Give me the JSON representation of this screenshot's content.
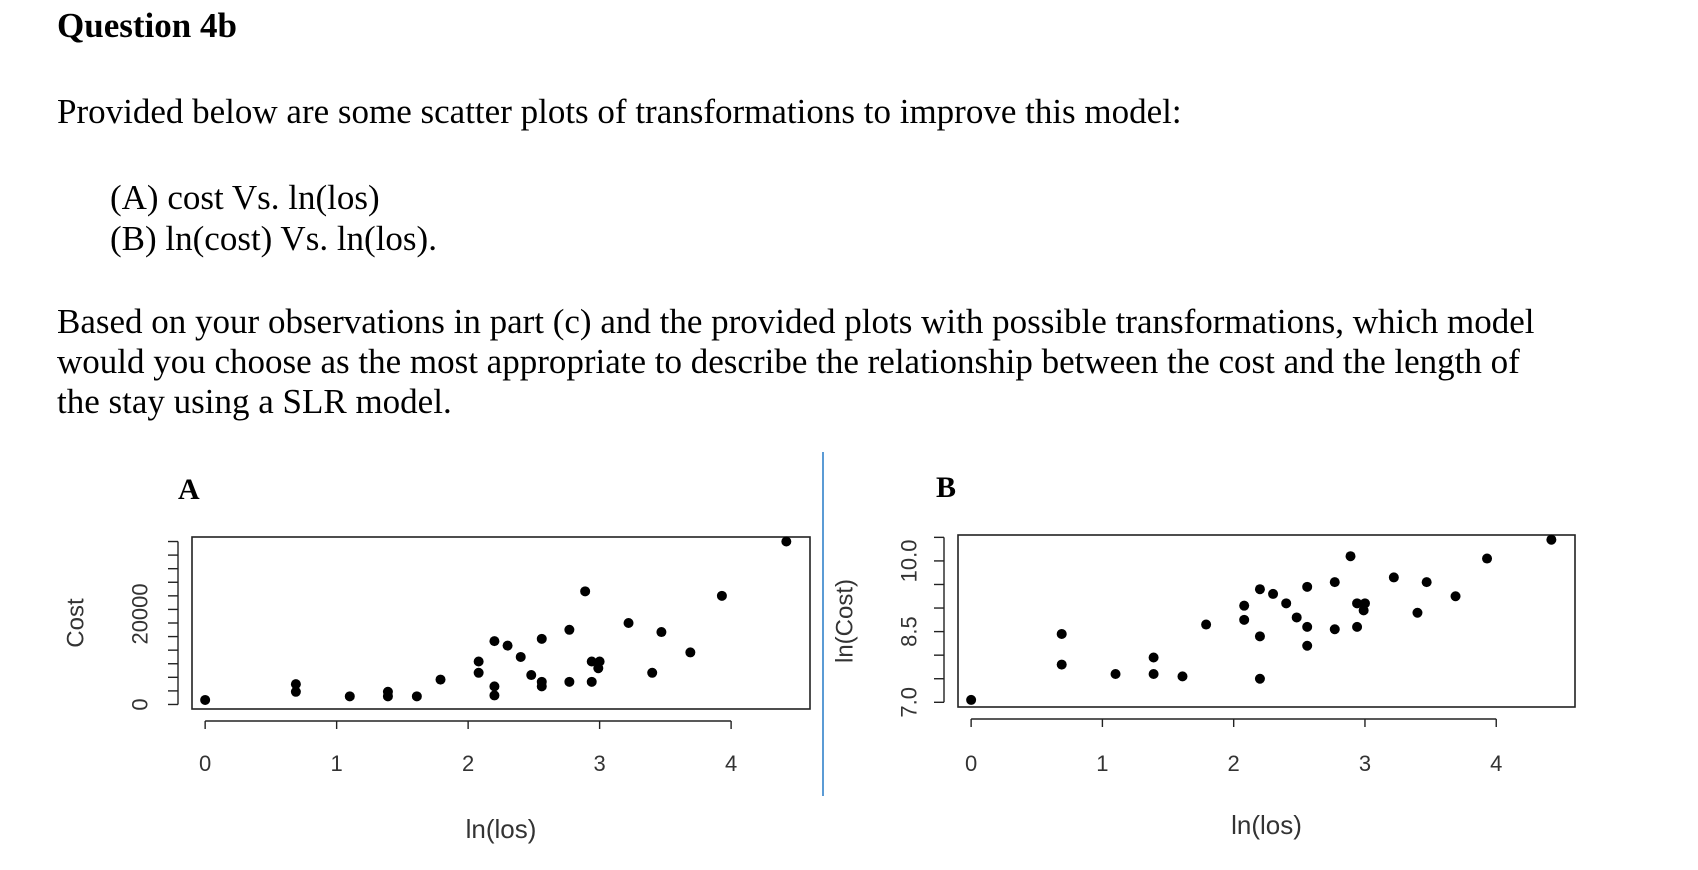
{
  "question": {
    "title": "Question 4b",
    "intro": "Provided below are some scatter plots of transformations to improve this model:",
    "options": [
      "(A) cost Vs. ln(los)",
      "(B) ln(cost) Vs. ln(los)."
    ],
    "paragraph_lines": [
      "Based on your observations in part (c) and the provided plots with possible transformations, which model",
      "would you choose as the most appropriate to describe the relationship between the cost and the length of",
      "the stay using a SLR model."
    ]
  },
  "divider_color": "#5b9bd5",
  "chart_data": [
    {
      "type": "scatter",
      "panel_label": "A",
      "xlabel": "ln(los)",
      "ylabel": "Cost",
      "x_ticks": [
        0,
        1,
        2,
        3,
        4
      ],
      "y_tick_labels": [
        "0",
        "20000"
      ],
      "y_minor_ticks": [
        0,
        3000,
        6000,
        9000,
        12000,
        15000,
        18000,
        21000,
        24000,
        27000,
        30000,
        33000,
        36000
      ],
      "xlim": [
        -0.1,
        4.6
      ],
      "ylim": [
        -1000,
        37000
      ],
      "points": [
        [
          0,
          1000
        ],
        [
          0.69,
          2800
        ],
        [
          0.69,
          4500
        ],
        [
          1.1,
          1800
        ],
        [
          1.39,
          1800
        ],
        [
          1.39,
          2800
        ],
        [
          1.61,
          1800
        ],
        [
          1.79,
          5500
        ],
        [
          2.08,
          7000
        ],
        [
          2.08,
          9500
        ],
        [
          2.2,
          2000
        ],
        [
          2.2,
          4000
        ],
        [
          2.2,
          14000
        ],
        [
          2.3,
          13000
        ],
        [
          2.4,
          10500
        ],
        [
          2.48,
          6500
        ],
        [
          2.56,
          4000
        ],
        [
          2.56,
          5000
        ],
        [
          2.56,
          14500
        ],
        [
          2.77,
          5000
        ],
        [
          2.77,
          16500
        ],
        [
          2.89,
          25000
        ],
        [
          2.94,
          5000
        ],
        [
          2.94,
          9500
        ],
        [
          2.99,
          8000
        ],
        [
          3.0,
          9500
        ],
        [
          3.22,
          18000
        ],
        [
          3.4,
          7000
        ],
        [
          3.47,
          16000
        ],
        [
          3.69,
          11500
        ],
        [
          3.93,
          24000
        ],
        [
          4.42,
          36000
        ]
      ]
    },
    {
      "type": "scatter",
      "panel_label": "B",
      "xlabel": "ln(los)",
      "ylabel": "ln(Cost)",
      "x_ticks": [
        0,
        1,
        2,
        3,
        4
      ],
      "y_tick_labels": [
        "7.0",
        "8.5",
        "10.0"
      ],
      "y_label_values": [
        7.0,
        8.5,
        10.0
      ],
      "y_minor_ticks": [
        7.0,
        7.5,
        8.0,
        8.5,
        9.0,
        9.5,
        10.0,
        10.5
      ],
      "xlim": [
        -0.1,
        4.6
      ],
      "ylim": [
        6.9,
        10.55
      ],
      "points": [
        [
          0,
          7.05
        ],
        [
          0.69,
          7.8
        ],
        [
          0.69,
          8.45
        ],
        [
          1.1,
          7.6
        ],
        [
          1.39,
          7.6
        ],
        [
          1.39,
          7.95
        ],
        [
          1.61,
          7.55
        ],
        [
          1.79,
          8.65
        ],
        [
          2.08,
          8.75
        ],
        [
          2.08,
          9.05
        ],
        [
          2.2,
          7.5
        ],
        [
          2.2,
          8.4
        ],
        [
          2.2,
          9.4
        ],
        [
          2.3,
          9.3
        ],
        [
          2.4,
          9.1
        ],
        [
          2.48,
          8.8
        ],
        [
          2.56,
          8.2
        ],
        [
          2.56,
          8.6
        ],
        [
          2.56,
          9.45
        ],
        [
          2.77,
          8.55
        ],
        [
          2.77,
          9.55
        ],
        [
          2.89,
          10.1
        ],
        [
          2.94,
          8.6
        ],
        [
          2.94,
          9.1
        ],
        [
          2.99,
          8.95
        ],
        [
          3.0,
          9.1
        ],
        [
          3.22,
          9.65
        ],
        [
          3.4,
          8.9
        ],
        [
          3.47,
          9.55
        ],
        [
          3.69,
          9.25
        ],
        [
          3.93,
          10.05
        ],
        [
          4.42,
          10.45
        ]
      ]
    }
  ]
}
